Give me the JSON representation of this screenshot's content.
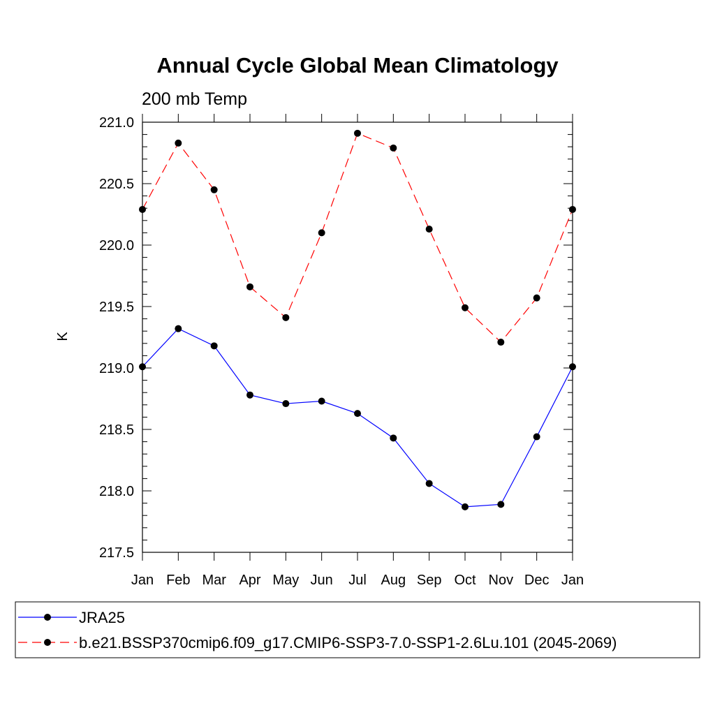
{
  "chart_data": {
    "type": "line",
    "title": "Annual Cycle Global Mean Climatology",
    "subtitle": "200 mb Temp",
    "ylabel": "K",
    "xlabel": "",
    "categories": [
      "Jan",
      "Feb",
      "Mar",
      "Apr",
      "May",
      "Jun",
      "Jul",
      "Aug",
      "Sep",
      "Oct",
      "Nov",
      "Dec",
      "Jan"
    ],
    "ylim": [
      217.5,
      221.0
    ],
    "yticks": [
      "217.5",
      "218.0",
      "218.5",
      "219.0",
      "219.5",
      "220.0",
      "220.5",
      "221.0"
    ],
    "grid": false,
    "legend_placement": "bottom",
    "series": [
      {
        "name": "JRA25",
        "color": "#0000ff",
        "line_style": "solid",
        "marker": "filled-circle",
        "values": [
          219.01,
          219.32,
          219.18,
          218.78,
          218.71,
          218.73,
          218.63,
          218.43,
          218.06,
          217.87,
          217.89,
          218.44,
          219.01
        ]
      },
      {
        "name": "b.e21.BSSP370cmip6.f09_g17.CMIP6-SSP3-7.0-SSP1-2.6Lu.101 (2045-2069)",
        "color": "#ff0000",
        "line_style": "dashed",
        "marker": "filled-circle",
        "values": [
          220.29,
          220.83,
          220.45,
          219.66,
          219.41,
          220.1,
          220.91,
          220.79,
          220.13,
          219.49,
          219.21,
          219.57,
          220.29
        ]
      }
    ]
  }
}
